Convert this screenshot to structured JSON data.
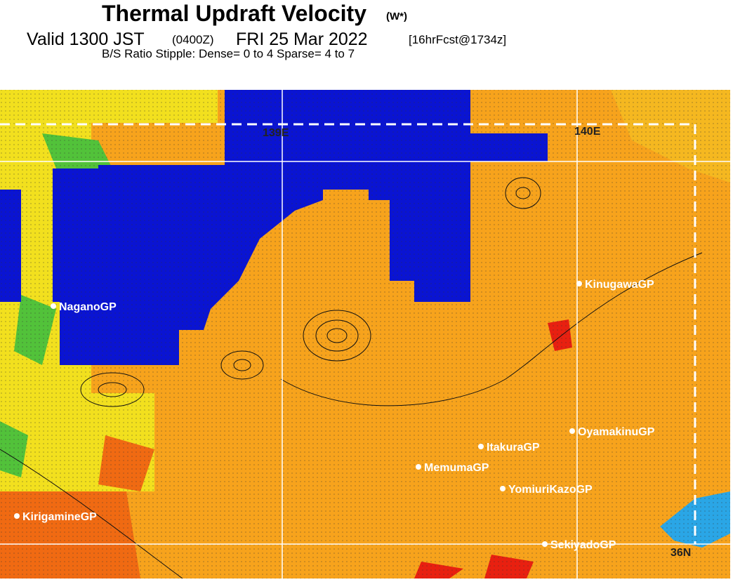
{
  "header": {
    "title": "Thermal Updraft Velocity",
    "title_unit": "(W*)",
    "valid": "Valid 1300 JST",
    "zulu": "(0400Z)",
    "date": "FRI 25 Mar 2022",
    "forecast": "[16hrFcst@1734z]",
    "stipple": "B/S Ratio Stipple:  Dense= 0 to 4  Sparse= 4 to 7"
  },
  "map": {
    "grid_labels": [
      "139E",
      "140E",
      "36N"
    ],
    "sites": [
      "NaganoGP",
      "KinugawaGP",
      "OyamakinuGP",
      "ItakuraGP",
      "MemumaGP",
      "YomiuriKazoGP",
      "KirigamineGP",
      "SekiyadoGP"
    ]
  }
}
